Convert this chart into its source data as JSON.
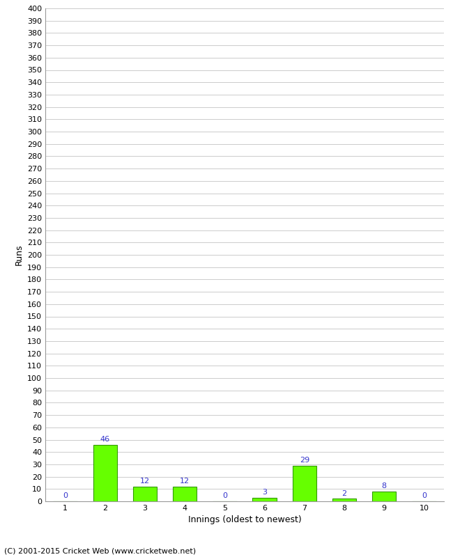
{
  "categories": [
    "1",
    "2",
    "3",
    "4",
    "5",
    "6",
    "7",
    "8",
    "9",
    "10"
  ],
  "values": [
    0,
    46,
    12,
    12,
    0,
    3,
    29,
    2,
    8,
    0
  ],
  "bar_color": "#66ff00",
  "bar_edge_color": "#339900",
  "label_color": "#3333cc",
  "ylabel": "Runs",
  "xlabel": "Innings (oldest to newest)",
  "ylim": [
    0,
    400
  ],
  "background_color": "#ffffff",
  "grid_color": "#cccccc",
  "footer": "(C) 2001-2015 Cricket Web (www.cricketweb.net)",
  "label_fontsize": 8,
  "tick_fontsize": 8,
  "footer_fontsize": 8
}
